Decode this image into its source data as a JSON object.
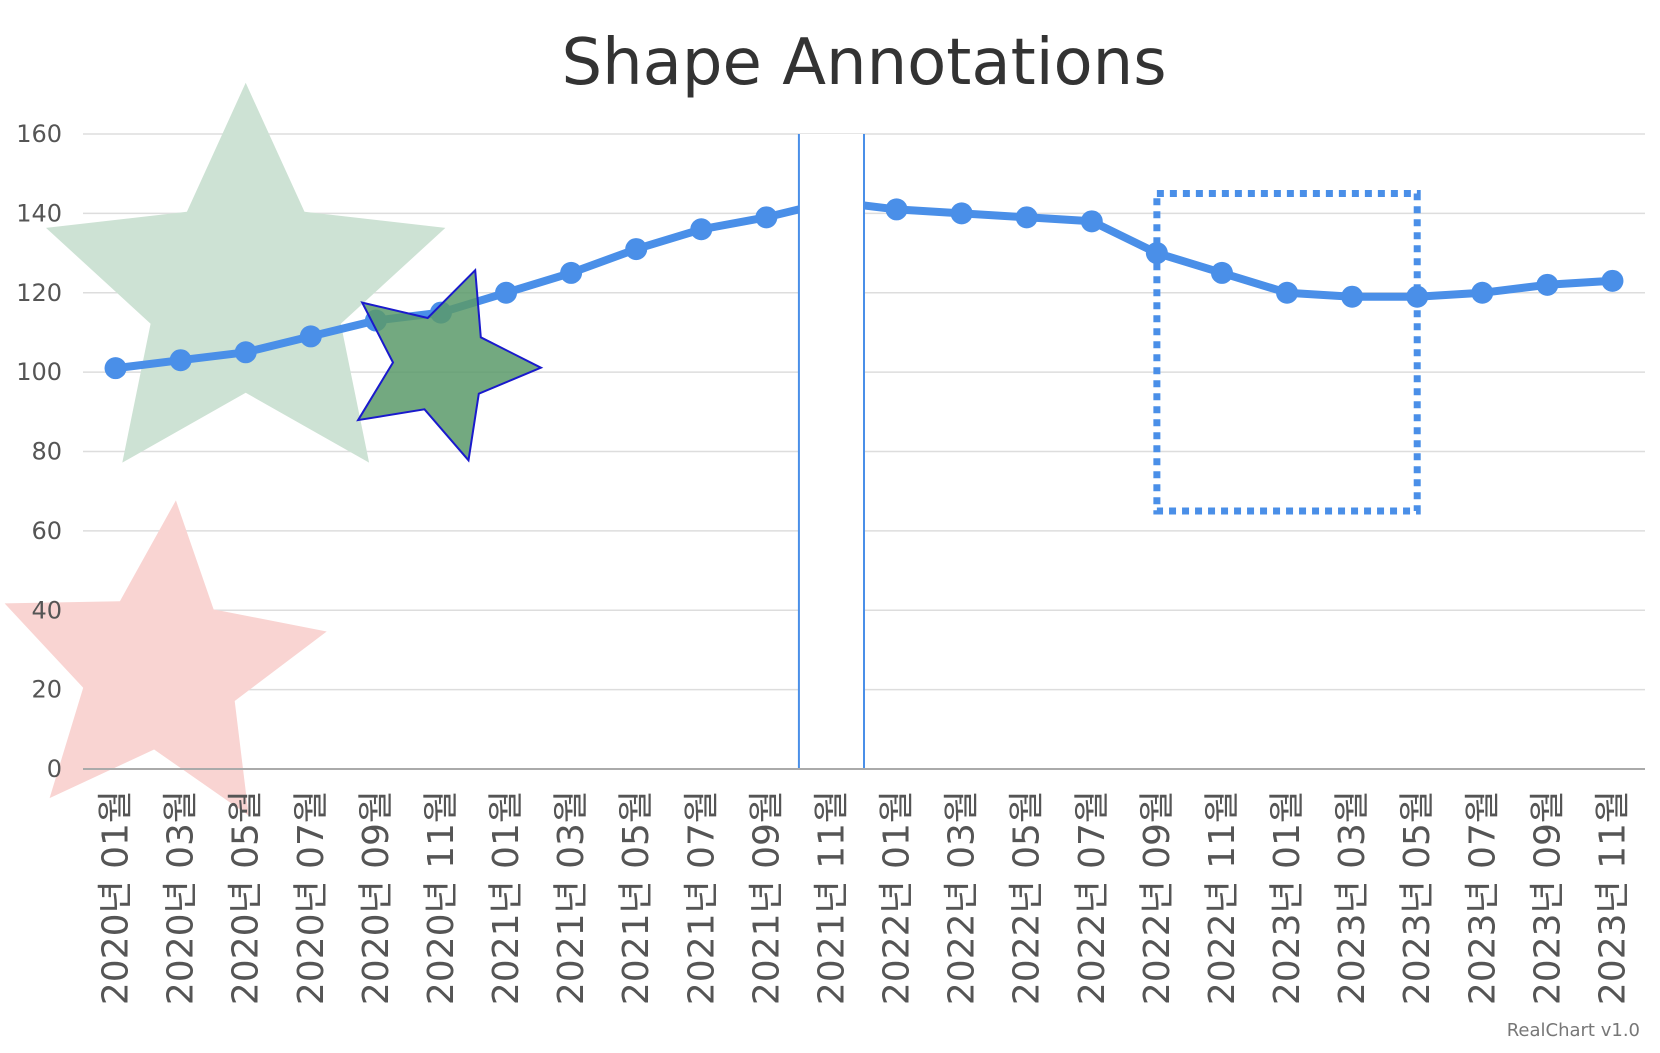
{
  "chart_data": {
    "type": "line",
    "title": "Shape Annotations",
    "categories": [
      "2020년 01월",
      "2020년 03월",
      "2020년 05월",
      "2020년 07월",
      "2020년 09월",
      "2020년 11월",
      "2021년 01월",
      "2021년 03월",
      "2021년 05월",
      "2021년 07월",
      "2021년 09월",
      "2021년 11월",
      "2022년 01월",
      "2022년 03월",
      "2022년 05월",
      "2022년 07월",
      "2022년 09월",
      "2022년 11월",
      "2023년 01월",
      "2023년 03월",
      "2023년 05월",
      "2023년 07월",
      "2023년 09월",
      "2023년 11월"
    ],
    "series": [
      {
        "values": [
          101,
          103,
          105,
          109,
          113,
          115,
          120,
          125,
          131,
          136,
          139,
          143,
          141,
          140,
          139,
          138,
          130,
          125,
          120,
          119,
          119,
          120,
          122,
          123
        ],
        "color": "#4a8fe8"
      }
    ],
    "ylim": [
      0,
      160
    ],
    "yticks": [
      0,
      20,
      40,
      60,
      80,
      100,
      120,
      140,
      160
    ],
    "grid": true,
    "annotations": [
      {
        "type": "star",
        "category_index": 2,
        "value": 120,
        "color": "#cde2d4"
      },
      {
        "type": "star",
        "category_index": 0.7,
        "value": 25,
        "color": "#f9d4d2"
      },
      {
        "type": "star",
        "category_index": 5,
        "value": 102,
        "color": "#5a9a6a",
        "border": "#1a1acc"
      },
      {
        "type": "band",
        "from_index": 10.5,
        "to_index": 11.5,
        "color": "#4a8fe8"
      },
      {
        "type": "dotted-rectangle",
        "from_index": 16,
        "to_index": 20,
        "y_from": 65,
        "y_to": 145,
        "color": "#4a8fe8"
      }
    ]
  },
  "credit": "RealChart v1.0"
}
